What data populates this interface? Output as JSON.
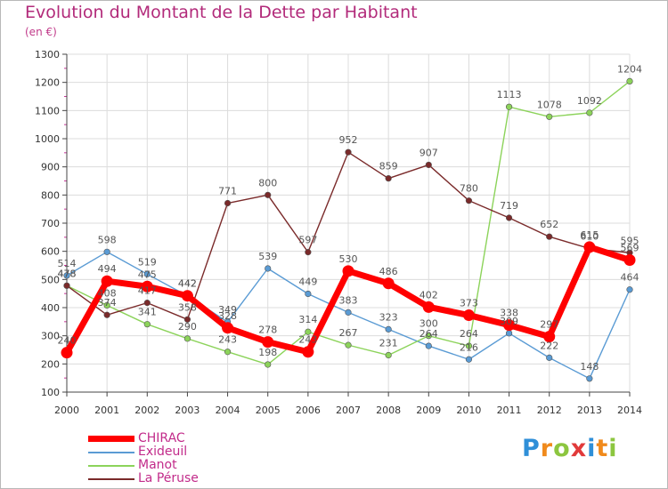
{
  "title": "Evolution du Montant de la Dette par Habitant",
  "subtitle": "(en €)",
  "logo": {
    "letters": [
      {
        "ch": "P",
        "color": "#2f8fd8"
      },
      {
        "ch": "r",
        "color": "#f08a1c"
      },
      {
        "ch": "o",
        "color": "#8cc63f"
      },
      {
        "ch": "x",
        "color": "#e13a3a"
      },
      {
        "ch": "i",
        "color": "#2f8fd8"
      },
      {
        "ch": "t",
        "color": "#f08a1c"
      },
      {
        "ch": "i",
        "color": "#8cc63f"
      }
    ]
  },
  "chart_data": {
    "type": "line",
    "x": [
      "2000",
      "2001",
      "2002",
      "2003",
      "2004",
      "2005",
      "2006",
      "2007",
      "2008",
      "2009",
      "2010",
      "2011",
      "2012",
      "2013",
      "2014"
    ],
    "ylim": [
      100,
      1300
    ],
    "yticks": [
      100,
      200,
      300,
      400,
      500,
      600,
      700,
      800,
      900,
      1000,
      1100,
      1200,
      1300
    ],
    "grid": true,
    "legend_position": "bottom-left",
    "series": [
      {
        "name": "CHIRAC",
        "color": "#ff0000",
        "values": [
          240,
          494,
          475,
          442,
          328,
          278,
          243,
          530,
          486,
          402,
          373,
          338,
          297,
          615,
          569
        ]
      },
      {
        "name": "Exideuil",
        "color": "#5a9bd4",
        "values": [
          514,
          598,
          519,
          442,
          349,
          539,
          449,
          383,
          323,
          264,
          216,
          309,
          222,
          148,
          464
        ]
      },
      {
        "name": "Manot",
        "color": "#8cd35a",
        "values": [
          478,
          408,
          341,
          290,
          243,
          198,
          314,
          267,
          231,
          300,
          264,
          1113,
          1078,
          1092,
          1204
        ]
      },
      {
        "name": "La Péruse",
        "color": "#7a2a2a",
        "values": [
          478,
          374,
          417,
          358,
          771,
          800,
          597,
          952,
          859,
          907,
          780,
          719,
          652,
          610,
          595
        ]
      }
    ]
  }
}
